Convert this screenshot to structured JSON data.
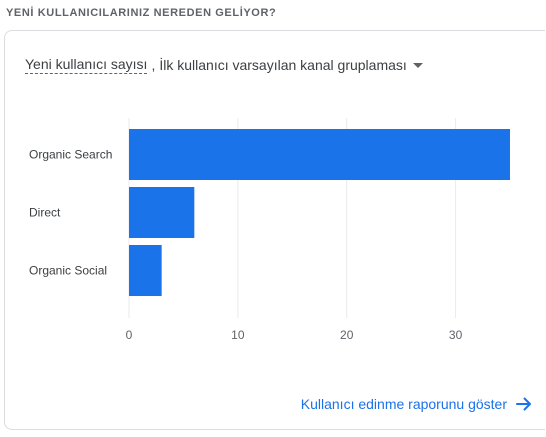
{
  "section_title": "YENİ KULLANICILARINIZ NEREDEN GELİYOR?",
  "selector": {
    "metric": "Yeni kullanıcı sayısı",
    "separator": ",",
    "dimension": "İlk kullanıcı varsayılan kanal gruplaması"
  },
  "icons": {
    "dropdown": "caret-down-icon",
    "link_arrow": "arrow-right-icon"
  },
  "colors": {
    "bar": "#1a73e8",
    "link": "#1a73e8"
  },
  "chart_data": {
    "type": "bar",
    "orientation": "horizontal",
    "title": "",
    "xlabel": "",
    "ylabel": "",
    "categories": [
      "Organic Search",
      "Direct",
      "Organic Social"
    ],
    "values": [
      35,
      6,
      3
    ],
    "xlim": [
      0,
      35
    ],
    "x_ticks": [
      0,
      10,
      20,
      30
    ],
    "grid": true
  },
  "footer_link": {
    "label": "Kullanıcı edinme raporunu göster"
  }
}
